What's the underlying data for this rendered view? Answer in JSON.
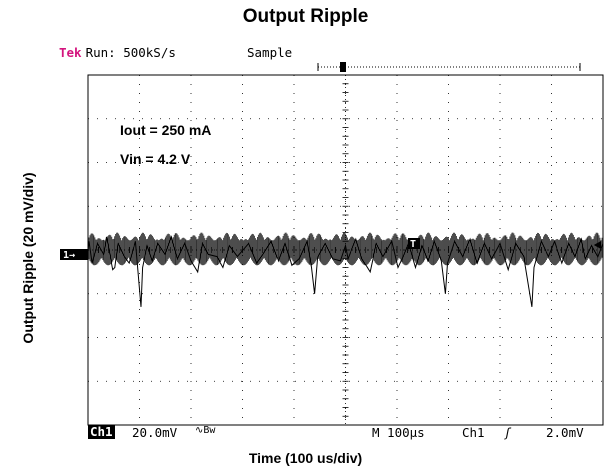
{
  "chart_data": {
    "type": "line",
    "title": "Output Ripple",
    "xlabel": "Time (100 us/div)",
    "ylabel": "Output Ripple (20 mV/div)",
    "grid": true,
    "x_divisions": 10,
    "y_divisions": 8,
    "xlim_us": [
      0,
      1000
    ],
    "ylim_mV": [
      -80,
      80
    ],
    "annotations": [
      "Iout = 250 mA",
      "Vin = 4.2 V"
    ],
    "series": [
      {
        "points_us_mV": [
          [
            0,
            0
          ],
          [
            2,
            4
          ],
          [
            8,
            -6
          ],
          [
            18,
            3
          ],
          [
            30,
            -2
          ],
          [
            36,
            6
          ],
          [
            48,
            -9
          ],
          [
            52,
            -8
          ],
          [
            58,
            3
          ],
          [
            70,
            -3
          ],
          [
            80,
            -6
          ],
          [
            92,
            4
          ],
          [
            103,
            -26
          ],
          [
            106,
            -8
          ],
          [
            115,
            2
          ],
          [
            125,
            -5
          ],
          [
            136,
            3
          ],
          [
            150,
            -2
          ],
          [
            162,
            6
          ],
          [
            174,
            -4
          ],
          [
            188,
            3
          ],
          [
            200,
            -5
          ],
          [
            213,
            -10
          ],
          [
            222,
            3
          ],
          [
            233,
            -2
          ],
          [
            250,
            -3
          ],
          [
            262,
            -8
          ],
          [
            274,
            2
          ],
          [
            290,
            -3
          ],
          [
            312,
            3
          ],
          [
            328,
            -6
          ],
          [
            340,
            -2
          ],
          [
            356,
            4
          ],
          [
            370,
            -5
          ],
          [
            383,
            3
          ],
          [
            396,
            -7
          ],
          [
            410,
            -4
          ],
          [
            425,
            4
          ],
          [
            434,
            -8
          ],
          [
            440,
            -20
          ],
          [
            446,
            -3
          ],
          [
            460,
            3
          ],
          [
            475,
            -4
          ],
          [
            490,
            -5
          ],
          [
            500,
            2
          ],
          [
            505,
            -4
          ],
          [
            520,
            5
          ],
          [
            532,
            -4
          ],
          [
            548,
            -10
          ],
          [
            560,
            3
          ],
          [
            573,
            -3
          ],
          [
            590,
            4
          ],
          [
            602,
            -8
          ],
          [
            610,
            -4
          ],
          [
            622,
            3
          ],
          [
            636,
            -8
          ],
          [
            648,
            2
          ],
          [
            660,
            -5
          ],
          [
            672,
            4
          ],
          [
            686,
            -5
          ],
          [
            694,
            -20
          ],
          [
            698,
            -6
          ],
          [
            712,
            4
          ],
          [
            728,
            -3
          ],
          [
            742,
            5
          ],
          [
            756,
            -6
          ],
          [
            770,
            3
          ],
          [
            784,
            -4
          ],
          [
            800,
            3
          ],
          [
            816,
            -9
          ],
          [
            830,
            3
          ],
          [
            846,
            -3
          ],
          [
            862,
            -26
          ],
          [
            866,
            -8
          ],
          [
            880,
            4
          ],
          [
            894,
            -3
          ],
          [
            906,
            4
          ],
          [
            920,
            -6
          ],
          [
            934,
            3
          ],
          [
            946,
            -3
          ],
          [
            958,
            5
          ],
          [
            966,
            -4
          ],
          [
            978,
            2
          ],
          [
            990,
            -3
          ],
          [
            1000,
            3
          ]
        ],
        "envelope_mV": [
          -7,
          8
        ]
      }
    ]
  },
  "scope": {
    "brand": "Tek",
    "run_status": "Run: 500kS/s",
    "acquire_mode": "Sample",
    "channel": "Ch1",
    "volts_per_div": "20.0mV",
    "bandwidth_symbol": "∿Bw",
    "timebase": "M 100μs",
    "trigger_source": "Ch1",
    "trigger_slope": "ʃ",
    "trigger_level": "2.0mV",
    "ch1_marker": "1→",
    "trigger_marker": "T"
  }
}
